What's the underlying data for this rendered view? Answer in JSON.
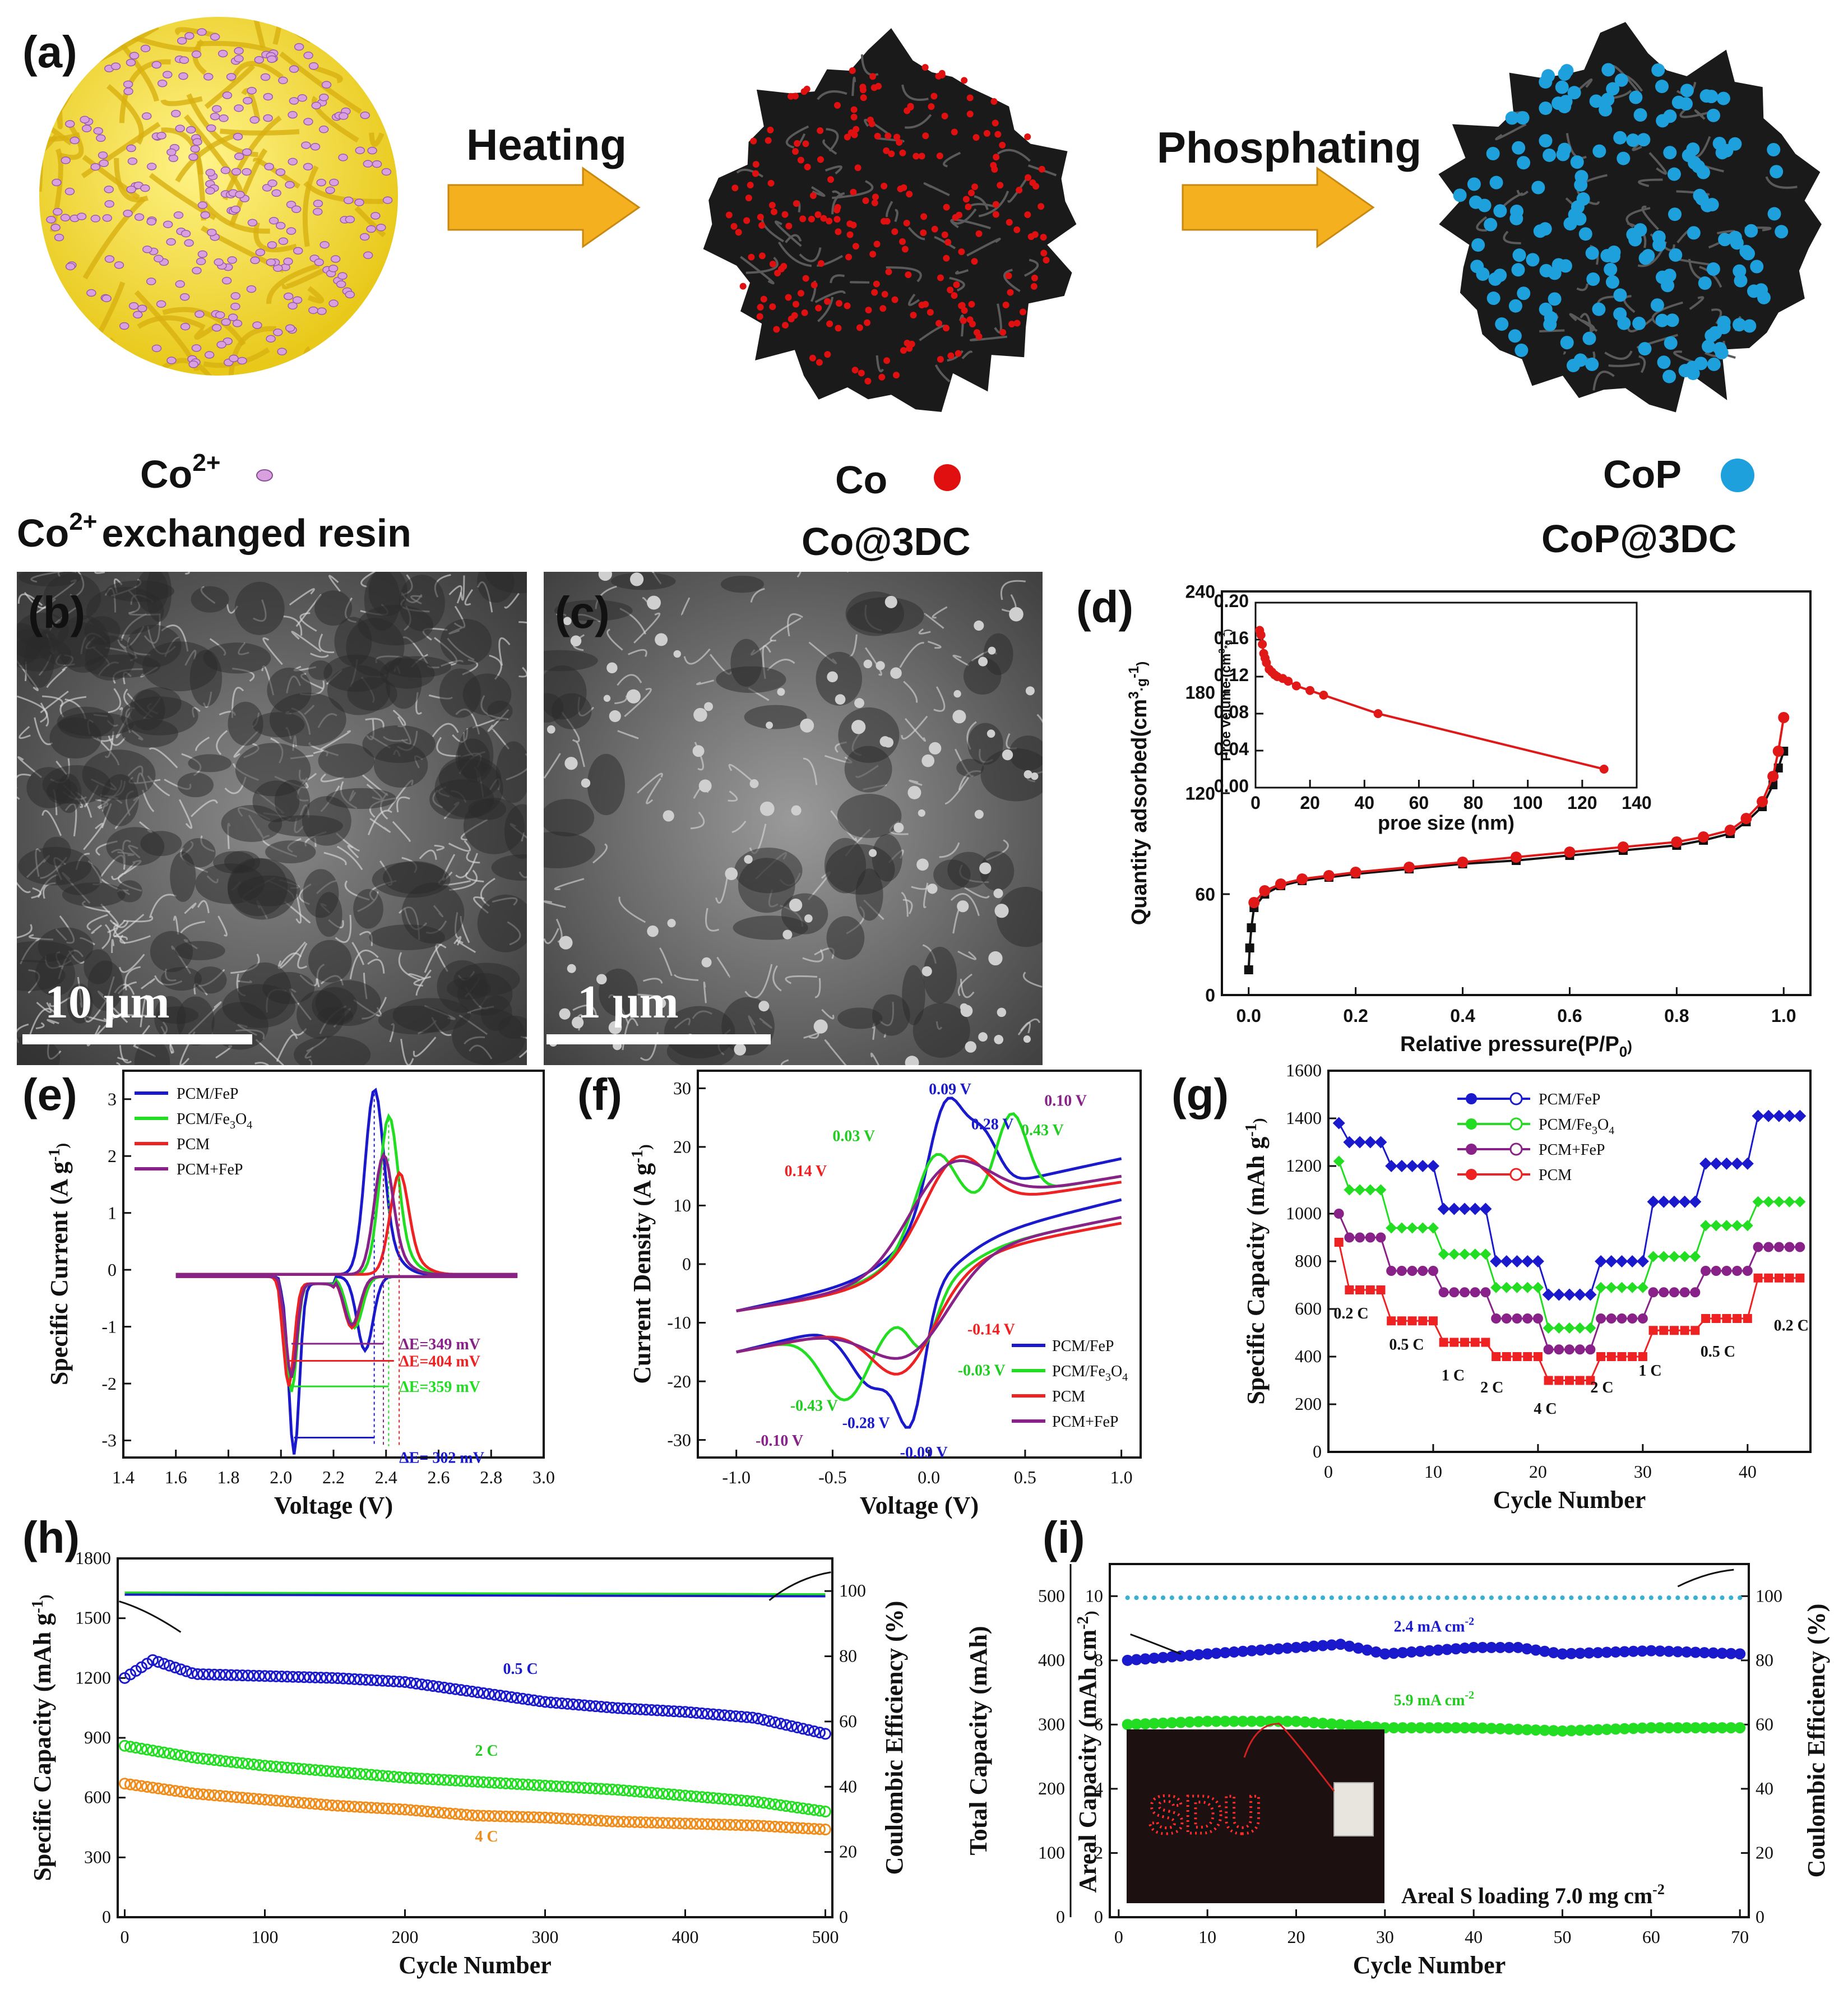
{
  "panels": {
    "a": "(a)",
    "b": "(b)",
    "c": "(c)",
    "d": "(d)",
    "e": "(e)",
    "f": "(f)",
    "g": "(g)",
    "h": "(h)",
    "i": "(i)"
  },
  "scheme": {
    "heating": "Heating",
    "phosphating": "Phosphating",
    "co2_ion": "Co",
    "co2_sup": "2+",
    "resin_prefix": "Co",
    "resin_sup": "2+",
    "resin_suffix": "exchanged resin",
    "co": "Co",
    "co3dc": "Co@3DC",
    "cop": "CoP",
    "cop3dc": "CoP@3DC",
    "colors": {
      "resin": "#f0e040",
      "ion": "#d9a0e0",
      "carbon": "#1a1a1a",
      "co": "#e01010",
      "cop": "#1ea0dc",
      "arrow": "#f5b020"
    }
  },
  "sem": {
    "b_scale": "10 μm",
    "c_scale": "1 μm"
  },
  "chart_data": [
    {
      "panel": "d",
      "type": "line",
      "xlabel": "Relative pressure(P/P",
      "xlabel_sub": "0",
      "xlabel_end": ")",
      "ylabel": "Quantity adsorbed(cm",
      "ylabel_sup": "3",
      "ylabel_mid": "·g",
      "ylabel_sup2": "-1",
      "ylabel_end": ")",
      "xlim": [
        -0.05,
        1.05
      ],
      "ylim": [
        0,
        240
      ],
      "xticks": [
        "0.0",
        "0.2",
        "0.4",
        "0.6",
        "0.8",
        "1.0"
      ],
      "yticks": [
        "0",
        "60",
        "120",
        "180",
        "240"
      ],
      "series": [
        {
          "color": "#111111",
          "x": [
            0,
            0.002,
            0.005,
            0.01,
            0.03,
            0.06,
            0.1,
            0.15,
            0.2,
            0.3,
            0.4,
            0.5,
            0.6,
            0.7,
            0.8,
            0.85,
            0.9,
            0.93,
            0.96,
            0.98,
            0.99,
            1.0
          ],
          "y": [
            15,
            28,
            40,
            52,
            60,
            65,
            68,
            70,
            72,
            75,
            78,
            80,
            83,
            86,
            89,
            92,
            96,
            103,
            112,
            125,
            135,
            145
          ]
        },
        {
          "color": "#e01818",
          "x": [
            0.01,
            0.03,
            0.06,
            0.1,
            0.15,
            0.2,
            0.3,
            0.4,
            0.5,
            0.6,
            0.7,
            0.8,
            0.85,
            0.9,
            0.93,
            0.96,
            0.98,
            0.99,
            1.0
          ],
          "y": [
            55,
            62,
            66,
            69,
            71,
            73,
            76,
            79,
            82,
            85,
            88,
            91,
            94,
            98,
            105,
            115,
            130,
            145,
            165
          ]
        }
      ],
      "inset": {
        "xlabel": "proe size (nm)",
        "ylabel": "Proe velume (cm",
        "ylabel_sup": "3",
        "ylabel_mid": "*g",
        "ylabel_sup2": "-1",
        "ylabel_end": ")",
        "xlim": [
          0,
          140
        ],
        "ylim": [
          0,
          0.2
        ],
        "xticks": [
          "0",
          "20",
          "40",
          "60",
          "80",
          "100",
          "120",
          "140"
        ],
        "yticks": [
          "0.00",
          "0.04",
          "0.08",
          "0.12",
          "0.16",
          "0.20"
        ],
        "x": [
          1.5,
          2,
          2.5,
          3,
          3.5,
          4,
          5,
          6,
          7,
          8,
          10,
          12,
          15,
          20,
          25,
          45,
          128
        ],
        "y": [
          0.17,
          0.165,
          0.155,
          0.145,
          0.14,
          0.135,
          0.128,
          0.125,
          0.122,
          0.12,
          0.118,
          0.115,
          0.11,
          0.105,
          0.1,
          0.08,
          0.02
        ],
        "color": "#e01818"
      }
    },
    {
      "panel": "e",
      "type": "line",
      "xlabel": "Voltage (V)",
      "ylabel": "Specific Current (A g",
      "ylabel_sup": "-1",
      "ylabel_end": ")",
      "xlim": [
        1.4,
        3.0
      ],
      "ylim": [
        -3.3,
        3.5
      ],
      "xticks": [
        "1.4",
        "1.6",
        "1.8",
        "2.0",
        "2.2",
        "2.4",
        "2.6",
        "2.8",
        "3.0"
      ],
      "yticks": [
        "-3",
        "-2",
        "-1",
        "0",
        "1",
        "2",
        "3"
      ],
      "legend": [
        "PCM/FeP",
        "PCM/Fe",
        "PCM",
        "PCM+FeP"
      ],
      "legend_fe_sub1": "3",
      "legend_fe_o": "O",
      "legend_fe_sub2": "4",
      "annotations": [
        "ΔE=349 mV",
        "ΔE=404 mV",
        "ΔE=359 mV",
        "ΔE= 302 mV"
      ],
      "colors": [
        "#1a1acc",
        "#22dd22",
        "#ee2222",
        "#882288"
      ],
      "peaks": [
        {
          "ox_v": 2.355,
          "ox_h": 3.1,
          "red1_v": 2.05,
          "red1_h": -3.0,
          "red2_v": 2.32,
          "red2_h": -1.3
        },
        {
          "ox_v": 2.41,
          "ox_h": 2.65,
          "red1_v": 2.04,
          "red1_h": -1.9,
          "red2_v": 2.28,
          "red2_h": -0.9
        },
        {
          "ox_v": 2.45,
          "ox_h": 1.7,
          "red1_v": 2.03,
          "red1_h": -1.8,
          "red2_v": 2.27,
          "red2_h": -0.9
        },
        {
          "ox_v": 2.39,
          "ox_h": 2.0,
          "red1_v": 2.04,
          "red1_h": -1.65,
          "red2_v": 2.27,
          "red2_h": -0.85
        }
      ]
    },
    {
      "panel": "f",
      "type": "line",
      "xlabel": "Voltage (V)",
      "ylabel": "Current Density (A g",
      "ylabel_sup": "-1",
      "ylabel_end": ")",
      "xlim": [
        -1.2,
        1.1
      ],
      "ylim": [
        -33,
        33
      ],
      "xticks": [
        "-1.0",
        "-0.5",
        "0.0",
        "0.5",
        "1.0"
      ],
      "yticks": [
        "-30",
        "-20",
        "-10",
        "0",
        "10",
        "20",
        "30"
      ],
      "legend": [
        "PCM/FeP",
        "PCM/Fe",
        "PCM",
        "PCM+FeP"
      ],
      "legend_fe_sub1": "3",
      "legend_fe_o": "O",
      "legend_fe_sub2": "4",
      "colors": [
        "#1a1acc",
        "#22dd22",
        "#ee2222",
        "#882288"
      ],
      "annotations": [
        {
          "t": "0.09 V",
          "c": "#1a1acc"
        },
        {
          "t": "0.28 V",
          "c": "#1a1acc"
        },
        {
          "t": "0.10 V",
          "c": "#882288"
        },
        {
          "t": "0.03 V",
          "c": "#22cc22"
        },
        {
          "t": "0.43 V",
          "c": "#22cc22"
        },
        {
          "t": "0.14 V",
          "c": "#ee2222"
        },
        {
          "t": "-0.14 V",
          "c": "#ee2222"
        },
        {
          "t": "-0.03 V",
          "c": "#22cc22"
        },
        {
          "t": "-0.43 V",
          "c": "#22cc22"
        },
        {
          "t": "-0.28 V",
          "c": "#1a1acc"
        },
        {
          "t": "-0.10 V",
          "c": "#882288"
        },
        {
          "t": "-0.09 V",
          "c": "#1a1acc"
        }
      ]
    },
    {
      "panel": "g",
      "type": "scatter",
      "xlabel": "Cycle Number",
      "ylabel": "Specific Capacity (mAh g",
      "ylabel_sup": "-1",
      "ylabel_end": ")",
      "xlim": [
        0,
        46
      ],
      "ylim": [
        0,
        1600
      ],
      "xticks": [
        "0",
        "10",
        "20",
        "30",
        "40"
      ],
      "yticks": [
        "0",
        "200",
        "400",
        "600",
        "800",
        "1000",
        "1200",
        "1400",
        "1600"
      ],
      "legend": [
        "PCM/FeP",
        "PCM/Fe",
        "PCM+FeP",
        "PCM"
      ],
      "legend_fe_sub1": "3",
      "legend_fe_o": "O",
      "legend_fe_sub2": "4",
      "colors": [
        "#1a1acc",
        "#22dd22",
        "#882288",
        "#ee2222"
      ],
      "rate_labels": [
        "0.2 C",
        "0.5 C",
        "1 C",
        "2 C",
        "4 C",
        "2 C",
        "1 C",
        "0.5 C",
        "0.2 C"
      ],
      "series": [
        {
          "name": "PCM/FeP",
          "steps": [
            1300,
            1200,
            1020,
            800,
            660,
            800,
            1050,
            1210,
            1410
          ],
          "first": 1380
        },
        {
          "name": "PCM/Fe3O4",
          "steps": [
            1100,
            940,
            830,
            690,
            520,
            690,
            820,
            950,
            1050
          ],
          "first": 1220
        },
        {
          "name": "PCM+FeP",
          "steps": [
            900,
            760,
            670,
            560,
            430,
            560,
            670,
            760,
            860
          ],
          "first": 1000
        },
        {
          "name": "PCM",
          "steps": [
            680,
            550,
            460,
            400,
            300,
            400,
            510,
            560,
            730
          ],
          "first": 880
        }
      ]
    },
    {
      "panel": "h",
      "type": "scatter",
      "xlabel": "Cycle Number",
      "ylabel": "Specific Capacity (mAh g",
      "ylabel_sup": "-1",
      "ylabel_end": ")",
      "ylabel_right": "Coulombic Efficiency (%)",
      "xlim": [
        -5,
        505
      ],
      "ylim": [
        0,
        1800
      ],
      "ylim_right": [
        0,
        110
      ],
      "xticks": [
        "0",
        "100",
        "200",
        "300",
        "400",
        "500"
      ],
      "yticks": [
        "0",
        "300",
        "600",
        "900",
        "1200",
        "1500",
        "1800"
      ],
      "yticks_right": [
        "0",
        "20",
        "40",
        "60",
        "80",
        "100"
      ],
      "rate_labels": [
        {
          "t": "0.5 C",
          "c": "#1a1acc"
        },
        {
          "t": "2 C",
          "c": "#22cc22"
        },
        {
          "t": "4 C",
          "c": "#f08c1a"
        }
      ],
      "series": [
        {
          "name": "0.5 C",
          "color": "#1a1acc",
          "x": [
            0,
            20,
            50,
            100,
            150,
            200,
            250,
            300,
            350,
            400,
            450,
            500
          ],
          "y": [
            1200,
            1290,
            1220,
            1210,
            1200,
            1180,
            1130,
            1080,
            1050,
            1030,
            1000,
            920
          ]
        },
        {
          "name": "2 C",
          "color": "#22dd22",
          "x": [
            0,
            50,
            100,
            150,
            200,
            250,
            300,
            350,
            400,
            450,
            500
          ],
          "y": [
            860,
            800,
            760,
            730,
            700,
            680,
            660,
            640,
            610,
            580,
            530
          ]
        },
        {
          "name": "4 C",
          "color": "#f08c1a",
          "x": [
            0,
            50,
            100,
            150,
            200,
            250,
            300,
            350,
            400,
            450,
            500
          ],
          "y": [
            670,
            620,
            590,
            560,
            540,
            510,
            500,
            480,
            470,
            460,
            440
          ]
        }
      ]
    },
    {
      "panel": "i",
      "type": "scatter",
      "xlabel": "Cycle Number",
      "ylabel": "Areal Capacity (mAh cm",
      "ylabel_sup": "-2",
      "ylabel_end": ")",
      "ylabel2": "Total Capacity (mAh)",
      "ylabel_right": "Coulombic Efficiency (%)",
      "xlim": [
        0,
        71
      ],
      "ylim": [
        0,
        11
      ],
      "xticks": [
        "0",
        "10",
        "20",
        "30",
        "40",
        "50",
        "60",
        "70"
      ],
      "yticks": [
        "0",
        "2",
        "4",
        "6",
        "8",
        "10"
      ],
      "yticks2": [
        "0",
        "100",
        "200",
        "300",
        "400",
        "500"
      ],
      "yticks_right": [
        "0",
        "20",
        "40",
        "60",
        "80",
        "100"
      ],
      "annotations": [
        {
          "t": "2.4 mA cm",
          "sup": "-2",
          "c": "#1a1acc"
        },
        {
          "t": "5.9 mA cm",
          "sup": "-2",
          "c": "#22cc22"
        }
      ],
      "photo_text": "SDU",
      "photo_caption": "Areal S loading 7.0 mg cm",
      "photo_caption_sup": "-2",
      "series": [
        {
          "name": "2.4 mA cm-2",
          "color": "#1a1acc",
          "x": [
            1,
            10,
            20,
            25,
            30,
            40,
            45,
            50,
            60,
            70
          ],
          "y": [
            8.0,
            8.2,
            8.4,
            8.5,
            8.2,
            8.4,
            8.4,
            8.2,
            8.3,
            8.2
          ]
        },
        {
          "name": "5.9 mA cm-2",
          "color": "#22dd22",
          "x": [
            1,
            10,
            20,
            30,
            40,
            50,
            60,
            70
          ],
          "y": [
            6.0,
            6.1,
            6.1,
            5.9,
            5.9,
            5.8,
            5.9,
            5.9
          ]
        }
      ]
    }
  ]
}
